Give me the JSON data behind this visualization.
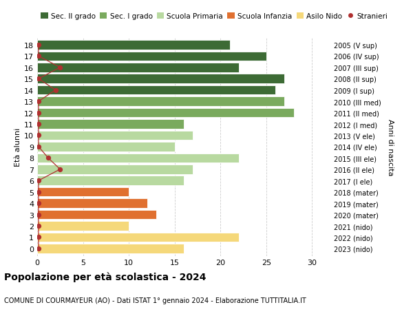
{
  "ages": [
    18,
    17,
    16,
    15,
    14,
    13,
    12,
    11,
    10,
    9,
    8,
    7,
    6,
    5,
    4,
    3,
    2,
    1,
    0
  ],
  "years": [
    "2005 (V sup)",
    "2006 (IV sup)",
    "2007 (III sup)",
    "2008 (II sup)",
    "2009 (I sup)",
    "2010 (III med)",
    "2011 (II med)",
    "2012 (I med)",
    "2013 (V ele)",
    "2014 (IV ele)",
    "2015 (III ele)",
    "2016 (II ele)",
    "2017 (I ele)",
    "2018 (mater)",
    "2019 (mater)",
    "2020 (mater)",
    "2021 (nido)",
    "2022 (nido)",
    "2023 (nido)"
  ],
  "bar_values": [
    21,
    25,
    22,
    27,
    26,
    27,
    28,
    16,
    17,
    15,
    22,
    17,
    16,
    10,
    12,
    13,
    10,
    22,
    16
  ],
  "bar_colors": [
    "#3d6b35",
    "#3d6b35",
    "#3d6b35",
    "#3d6b35",
    "#3d6b35",
    "#7aaa5e",
    "#7aaa5e",
    "#7aaa5e",
    "#b8d9a0",
    "#b8d9a0",
    "#b8d9a0",
    "#b8d9a0",
    "#b8d9a0",
    "#e07030",
    "#e07030",
    "#e07030",
    "#f5d87a",
    "#f5d87a",
    "#f5d87a"
  ],
  "stranieri_x": [
    0.15,
    0.15,
    2.5,
    0.15,
    2.0,
    0.15,
    0.15,
    0.15,
    0.15,
    0.15,
    1.2,
    2.5,
    0.15,
    0.15,
    0.15,
    0.15,
    0.15,
    0.15,
    0.15
  ],
  "stranieri_color": "#b03030",
  "legend_labels": [
    "Sec. II grado",
    "Sec. I grado",
    "Scuola Primaria",
    "Scuola Infanzia",
    "Asilo Nido",
    "Stranieri"
  ],
  "legend_colors": [
    "#3d6b35",
    "#7aaa5e",
    "#b8d9a0",
    "#e07030",
    "#f5d87a",
    "#b03030"
  ],
  "title": "Popolazione per età scolastica - 2024",
  "subtitle": "COMUNE DI COURMAYEUR (AO) - Dati ISTAT 1° gennaio 2024 - Elaborazione TUTTITALIA.IT",
  "ylabel": "Età alunni",
  "right_ylabel": "Anni di nascita",
  "xlim": [
    0,
    32
  ],
  "xticks": [
    0,
    5,
    10,
    15,
    20,
    25,
    30
  ],
  "background_color": "#ffffff",
  "grid_color": "#cccccc",
  "bar_height": 0.82
}
